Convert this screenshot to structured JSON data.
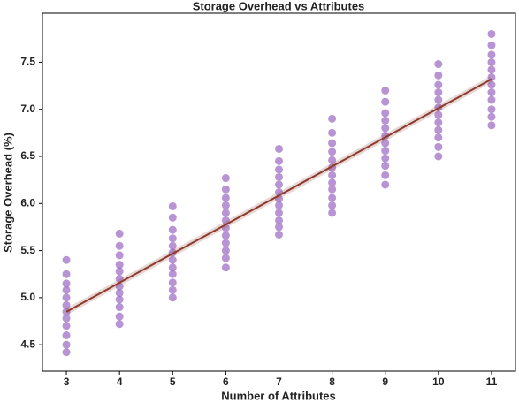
{
  "chart_data": {
    "type": "scatter",
    "title": "Storage Overhead vs Attributes",
    "x_label": "Number of Attributes",
    "y_label": "Storage Overhead (%)",
    "xlim": [
      2.55,
      11.45
    ],
    "ylim": [
      4.22,
      8.02
    ],
    "xticks": [
      3,
      4,
      5,
      6,
      7,
      8,
      9,
      10,
      11
    ],
    "yticks": [
      4.5,
      {
        "value": 5,
        "label": "5.0"
      },
      5.5,
      {
        "value": 6,
        "label": "6.0"
      },
      6.5,
      {
        "value": 7,
        "label": "7.0"
      },
      7.5
    ],
    "series": [
      {
        "color": "#9a66c2",
        "x": [
          3,
          3,
          3,
          3,
          3,
          3,
          3,
          3,
          3,
          3,
          3,
          3,
          4,
          4,
          4,
          4,
          4,
          4,
          4,
          4,
          4,
          4,
          4,
          4,
          5,
          5,
          5,
          5,
          5,
          5,
          5,
          5,
          5,
          5,
          5,
          5,
          6,
          6,
          6,
          6,
          6,
          6,
          6,
          6,
          6,
          6,
          6,
          6,
          7,
          7,
          7,
          7,
          7,
          7,
          7,
          7,
          7,
          7,
          7,
          7,
          8,
          8,
          8,
          8,
          8,
          8,
          8,
          8,
          8,
          8,
          8,
          8,
          9,
          9,
          9,
          9,
          9,
          9,
          9,
          9,
          9,
          9,
          9,
          9,
          10,
          10,
          10,
          10,
          10,
          10,
          10,
          10,
          10,
          10,
          10,
          10,
          11,
          11,
          11,
          11,
          11,
          11,
          11,
          11,
          11,
          11,
          11,
          11
        ],
        "y": [
          4.42,
          4.5,
          4.6,
          4.7,
          4.78,
          4.85,
          4.92,
          5.0,
          5.08,
          5.15,
          5.25,
          5.4,
          4.72,
          4.8,
          4.9,
          4.98,
          5.05,
          5.12,
          5.2,
          5.28,
          5.35,
          5.45,
          5.55,
          5.68,
          5.0,
          5.08,
          5.16,
          5.25,
          5.32,
          5.4,
          5.48,
          5.55,
          5.63,
          5.72,
          5.85,
          5.97,
          5.32,
          5.42,
          5.5,
          5.58,
          5.66,
          5.74,
          5.82,
          5.9,
          5.98,
          6.06,
          6.15,
          6.27,
          5.67,
          5.75,
          5.82,
          5.9,
          5.98,
          6.05,
          6.12,
          6.2,
          6.28,
          6.36,
          6.45,
          6.58,
          5.9,
          5.98,
          6.06,
          6.15,
          6.22,
          6.3,
          6.38,
          6.46,
          6.55,
          6.64,
          6.75,
          6.9,
          6.2,
          6.3,
          6.4,
          6.48,
          6.56,
          6.64,
          6.72,
          6.8,
          6.88,
          6.96,
          7.08,
          7.2,
          6.5,
          6.6,
          6.7,
          6.78,
          6.86,
          6.94,
          7.02,
          7.1,
          7.18,
          7.26,
          7.36,
          7.48,
          6.83,
          6.92,
          7.0,
          7.1,
          7.18,
          7.26,
          7.34,
          7.42,
          7.5,
          7.58,
          7.68,
          7.8
        ]
      }
    ],
    "trend": {
      "color": "#8b3a2e",
      "x": [
        3,
        11
      ],
      "y": [
        4.85,
        7.32
      ]
    }
  }
}
